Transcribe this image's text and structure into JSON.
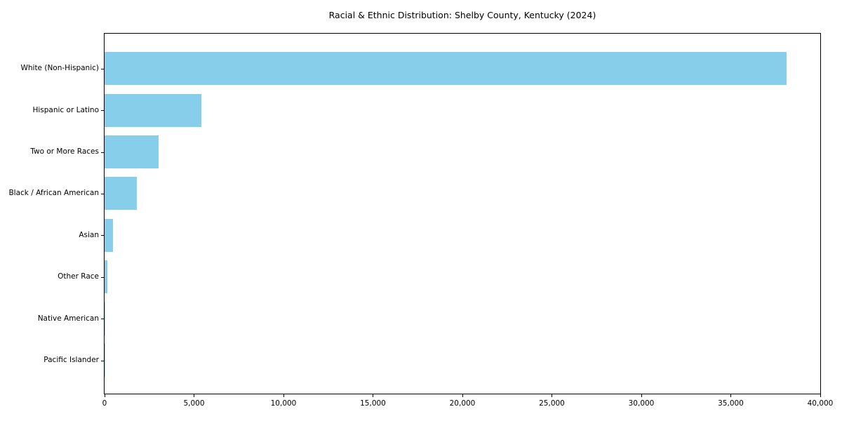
{
  "title": "Racial & Ethnic Distribution: Shelby County, Kentucky (2024)",
  "chart_data": {
    "type": "bar",
    "orientation": "horizontal",
    "title": "Racial & Ethnic Distribution: Shelby County, Kentucky (2024)",
    "categories": [
      "White (Non-Hispanic)",
      "Hispanic or Latino",
      "Two or More Races",
      "Black / African American",
      "Asian",
      "Other Race",
      "Native American",
      "Pacific Islander"
    ],
    "values": [
      38100,
      5400,
      3000,
      1800,
      460,
      170,
      40,
      10
    ],
    "xlabel": "",
    "ylabel": "",
    "xlim": [
      0,
      40000
    ],
    "xticks": [
      0,
      5000,
      10000,
      15000,
      20000,
      25000,
      30000,
      35000,
      40000
    ],
    "xtick_labels": [
      "0",
      "5,000",
      "10,000",
      "15,000",
      "20,000",
      "25,000",
      "30,000",
      "35,000",
      "40,000"
    ],
    "grid": false,
    "legend_position": "none",
    "bar_color": "#87CEEB",
    "axis_color": "#000000",
    "background_color": "#ffffff",
    "text_color": "#000000"
  }
}
